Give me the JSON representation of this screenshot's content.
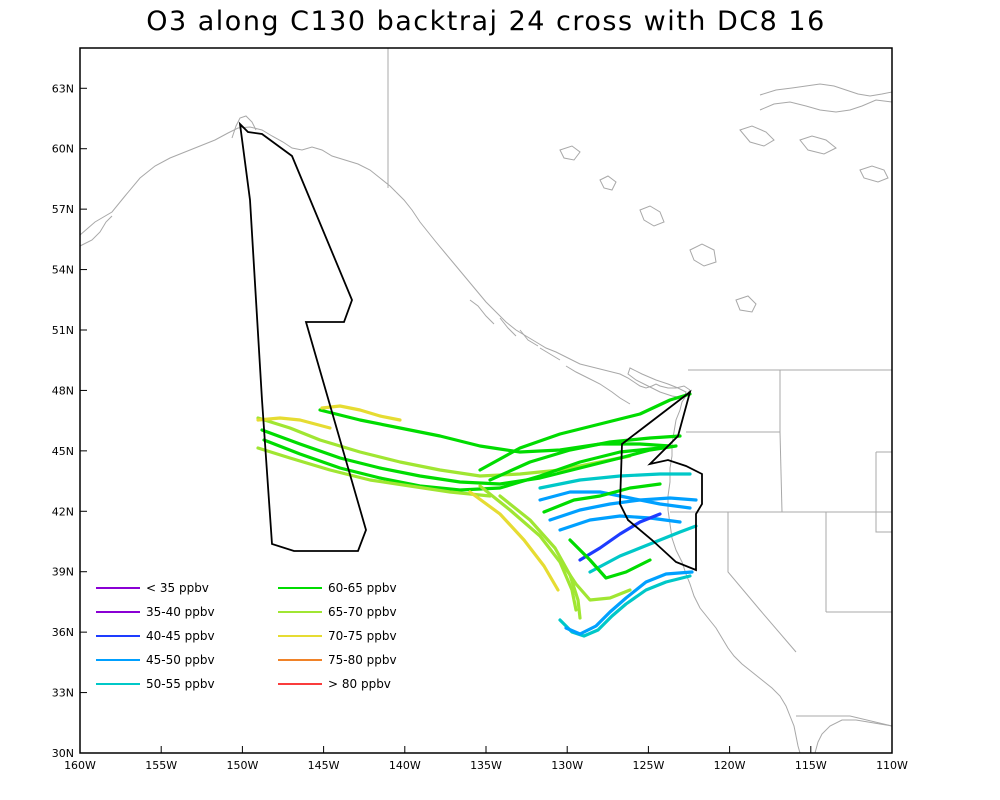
{
  "title": "O3 along C130 backtraj 24 cross with DC8 16",
  "map": {
    "lon_range": [
      -160,
      -110
    ],
    "lat_range": [
      30,
      65
    ],
    "lon_ticks": [
      "160W",
      "155W",
      "150W",
      "145W",
      "140W",
      "135W",
      "130W",
      "125W",
      "120W",
      "115W",
      "110W"
    ],
    "lat_ticks": [
      "30N",
      "33N",
      "36N",
      "39N",
      "42N",
      "45N",
      "48N",
      "51N",
      "54N",
      "57N",
      "60N",
      "63N"
    ]
  },
  "legend": {
    "left": [
      {
        "label": "< 35 ppbv",
        "color": "#8a00d4"
      },
      {
        "label": "35-40 ppbv",
        "color": "#8a00d4"
      },
      {
        "label": "40-45 ppbv",
        "color": "#1e3cff"
      },
      {
        "label": "45-50 ppbv",
        "color": "#00a0ff"
      },
      {
        "label": "50-55 ppbv",
        "color": "#00c8c8"
      }
    ],
    "right": [
      {
        "label": "60-65 ppbv",
        "color": "#00dc00"
      },
      {
        "label": "65-70 ppbv",
        "color": "#a0e632"
      },
      {
        "label": "70-75 ppbv",
        "color": "#e6dc32"
      },
      {
        "label": "75-80 ppbv",
        "color": "#f08228"
      },
      {
        "label": "> 80 ppbv",
        "color": "#fa3c3c"
      }
    ]
  },
  "colors": {
    "flight_track": "#000000",
    "coastline": "#a8a8a8"
  }
}
